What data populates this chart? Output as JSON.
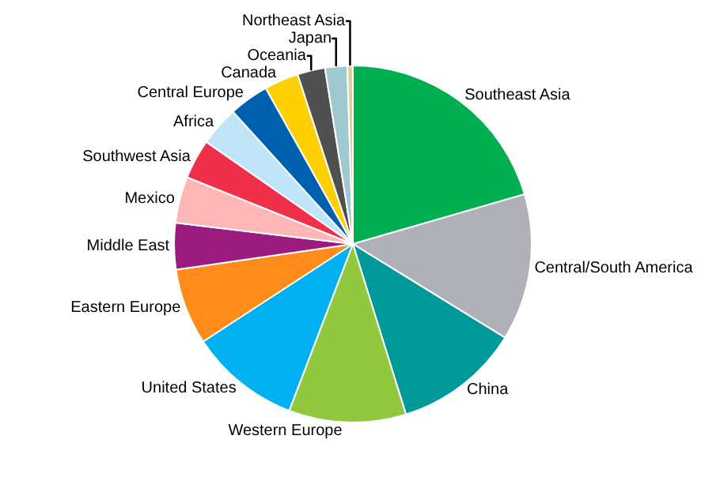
{
  "chart_data": {
    "type": "pie",
    "categories": [
      "Southeast Asia",
      "Central/South America",
      "China",
      "Western Europe",
      "United States",
      "Eastern Europe",
      "Middle East",
      "Mexico",
      "Southwest Asia",
      "Africa",
      "Central Europe",
      "Canada",
      "Oceania",
      "Japan",
      "Northeast Asia"
    ],
    "values": [
      20.5,
      13.3,
      11.4,
      10.6,
      10.0,
      6.9,
      4.2,
      4.2,
      3.6,
      3.6,
      3.6,
      3.1,
      2.5,
      2.0,
      0.5
    ],
    "colors": [
      "#00b050",
      "#b0b0b8",
      "#009999",
      "#92c83e",
      "#00b0f0",
      "#ff8c1a",
      "#9b1b7e",
      "#ffb6b6",
      "#f0304a",
      "#c0e4f8",
      "#0060b0",
      "#ffd000",
      "#505050",
      "#a0c8d0",
      "#d8d0a0"
    ],
    "legend": false
  }
}
